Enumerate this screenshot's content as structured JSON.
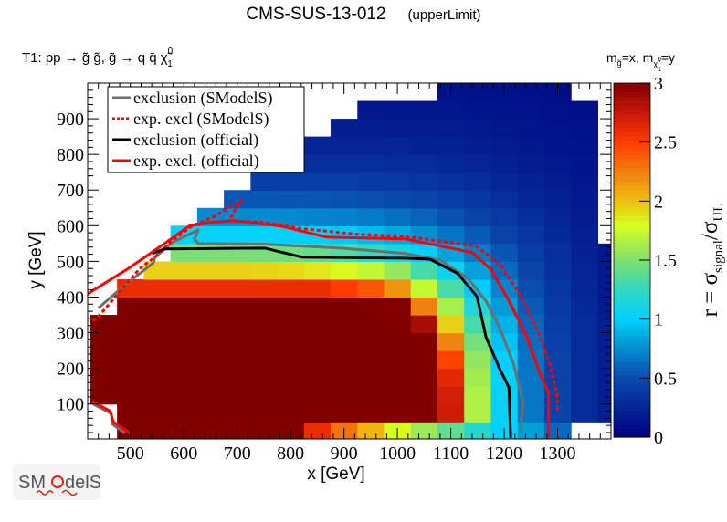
{
  "header": {
    "title": "CMS-SUS-13-012",
    "subtitle": "(upperLimit)",
    "process": "T1: pp → g̃ g̃, g̃  → q q̄  χ̃",
    "process_sup": "0",
    "process_sub": "1",
    "mass_m1": "m",
    "mass_sub1": "g̃",
    "mass_mid": "=x, m",
    "mass_sub2": "χ̃",
    "mass_sub2_sup": "0",
    "mass_sub2_sub": "1",
    "mass_end": "=y"
  },
  "logo": {
    "text": "SModelS"
  },
  "chart_data": {
    "type": "heatmap",
    "title": "CMS-SUS-13-012 (upperLimit)",
    "xlabel": "x [GeV]",
    "ylabel": "y [GeV]",
    "zlabel": {
      "main": "r = σ",
      "sub1": "signal",
      "mid": "/σ",
      "sub2": "UL"
    },
    "xlim": [
      420,
      1400
    ],
    "ylim": [
      2,
      1000
    ],
    "zlim": [
      0,
      3
    ],
    "xticks": [
      "500",
      "600",
      "700",
      "800",
      "900",
      "1000",
      "1100",
      "1200",
      "1300"
    ],
    "yticks": [
      "100",
      "200",
      "300",
      "400",
      "500",
      "600",
      "700",
      "800",
      "900"
    ],
    "zticks": [
      "0",
      "0.5",
      "1",
      "1.5",
      "2",
      "2.5",
      "3"
    ],
    "bin_width": 50,
    "x_centers": [
      450,
      500,
      550,
      600,
      650,
      700,
      750,
      800,
      850,
      900,
      950,
      1000,
      1050,
      1100,
      1150,
      1200,
      1250,
      1300,
      1350,
      1400
    ],
    "y_centers": [
      25,
      75,
      125,
      175,
      225,
      275,
      325,
      375,
      425,
      475,
      525,
      575,
      625,
      675,
      725,
      775,
      825,
      875,
      925,
      975
    ],
    "z": [
      [
        null,
        3,
        3,
        3,
        3,
        3,
        3,
        3,
        2.6,
        2.3,
        2.05,
        1.8,
        1.6,
        1.4,
        1.2,
        1.0,
        0.82,
        0.62,
        null,
        null
      ],
      [
        null,
        3,
        3,
        3,
        3,
        3,
        3,
        3,
        3,
        3,
        3,
        3,
        3,
        2.72,
        1.66,
        1.04,
        0.67,
        0.45,
        0.3,
        0.21
      ],
      [
        3,
        3,
        3,
        3,
        3,
        3,
        3,
        3,
        3,
        3,
        3,
        3,
        3,
        2.71,
        1.65,
        1.04,
        0.67,
        0.45,
        0.3,
        0.21
      ],
      [
        3,
        3,
        3,
        3,
        3,
        3,
        3,
        3,
        3,
        3,
        3,
        3,
        3,
        2.63,
        1.62,
        1.03,
        0.67,
        0.44,
        0.3,
        0.21
      ],
      [
        3,
        3,
        3,
        3,
        3,
        3,
        3,
        3,
        3,
        3,
        3,
        3,
        3,
        2.48,
        1.56,
        1.0,
        0.66,
        0.44,
        0.3,
        0.21
      ],
      [
        3,
        3,
        3,
        3,
        3,
        3,
        3,
        3,
        3,
        3,
        3,
        3,
        3,
        2.24,
        1.46,
        0.95,
        0.63,
        0.43,
        0.29,
        0.2
      ],
      [
        3,
        3,
        3,
        3,
        3,
        3,
        3,
        3,
        3,
        3,
        3,
        3,
        2.86,
        1.95,
        1.32,
        0.89,
        0.6,
        0.41,
        0.29,
        0.2
      ],
      [
        null,
        3,
        3,
        3,
        3,
        3,
        3,
        3,
        3,
        3,
        3,
        2.99,
        2.25,
        1.63,
        1.16,
        0.8,
        0.56,
        0.39,
        0.28,
        0.19
      ],
      [
        null,
        2.6,
        2.6,
        2.6,
        2.6,
        2.6,
        2.6,
        2.6,
        2.6,
        2.5,
        2.4,
        2.17,
        1.74,
        1.33,
        0.99,
        0.72,
        0.51,
        0.37,
        0.26,
        0.18
      ],
      [
        null,
        null,
        1.95,
        1.95,
        1.95,
        1.95,
        1.94,
        1.92,
        1.88,
        1.82,
        1.72,
        1.57,
        1.32,
        1.06,
        0.83,
        0.62,
        0.46,
        0.34,
        0.25,
        0.17
      ],
      [
        null,
        null,
        null,
        1.48,
        1.48,
        1.48,
        1.47,
        1.45,
        1.41,
        1.35,
        1.27,
        1.15,
        1.0,
        0.84,
        0.68,
        0.54,
        0.41,
        0.31,
        0.23,
        0.16
      ],
      [
        null,
        null,
        null,
        1.03,
        1.03,
        1.03,
        1.03,
        1.02,
        1.0,
        0.97,
        0.92,
        0.85,
        0.76,
        0.66,
        0.56,
        0.45,
        0.36,
        0.28,
        0.21,
        null
      ],
      [
        null,
        null,
        null,
        null,
        0.74,
        0.74,
        0.74,
        0.74,
        0.72,
        0.71,
        0.68,
        0.64,
        0.59,
        0.53,
        0.45,
        0.38,
        0.31,
        0.25,
        0.19,
        null
      ],
      [
        null,
        null,
        null,
        null,
        null,
        0.55,
        0.55,
        0.54,
        0.54,
        0.53,
        0.51,
        0.49,
        0.46,
        0.42,
        0.37,
        0.32,
        0.26,
        0.22,
        0.17,
        null
      ],
      [
        null,
        null,
        null,
        null,
        null,
        null,
        0.42,
        0.42,
        0.41,
        0.41,
        0.39,
        0.38,
        0.36,
        0.33,
        0.3,
        0.26,
        0.23,
        0.19,
        0.15,
        null
      ],
      [
        null,
        null,
        null,
        null,
        null,
        null,
        null,
        0.32,
        0.32,
        0.31,
        0.31,
        0.3,
        0.29,
        0.27,
        0.25,
        0.22,
        0.19,
        0.16,
        0.14,
        null
      ],
      [
        null,
        null,
        null,
        null,
        null,
        null,
        null,
        null,
        0.25,
        0.25,
        0.245,
        0.24,
        0.23,
        0.22,
        0.2,
        0.18,
        0.16,
        0.14,
        0.12,
        null
      ],
      [
        null,
        null,
        null,
        null,
        null,
        null,
        null,
        null,
        null,
        0.2,
        0.2,
        0.19,
        0.186,
        0.18,
        0.17,
        0.155,
        0.14,
        0.12,
        0.107,
        null
      ],
      [
        null,
        null,
        null,
        null,
        null,
        null,
        null,
        null,
        null,
        null,
        0.16,
        0.157,
        0.15,
        0.147,
        0.14,
        0.13,
        0.12,
        0.107,
        0.094,
        null
      ],
      [
        null,
        null,
        null,
        null,
        null,
        null,
        null,
        null,
        null,
        null,
        null,
        null,
        null,
        0.12,
        0.117,
        0.11,
        0.1,
        0.093,
        null,
        null
      ]
    ],
    "colormap": [
      [
        0,
        "#00007f"
      ],
      [
        0.5,
        "#0a4aad"
      ],
      [
        0.9,
        "#00b4e6"
      ],
      [
        1.0,
        "#00d0ff"
      ],
      [
        1.25,
        "#30d8c0"
      ],
      [
        1.5,
        "#80e070"
      ],
      [
        1.8,
        "#d8ff20"
      ],
      [
        2.0,
        "#f0c010"
      ],
      [
        2.25,
        "#f08010"
      ],
      [
        2.5,
        "#ff3c00"
      ],
      [
        2.75,
        "#c81808"
      ],
      [
        3,
        "#800000"
      ]
    ],
    "legend_position": "top-left",
    "series": [
      {
        "name": "exclusion (SModelS)",
        "color": "#6e6e6e",
        "style": "solid",
        "segments": [
          [
            [
              440,
              369
            ],
            [
              491,
              435
            ],
            [
              543,
              496
            ],
            [
              546,
              512
            ],
            [
              581,
              555
            ],
            [
              627,
              588
            ],
            [
              620,
              563
            ],
            [
              627,
              550
            ],
            [
              752,
              548
            ],
            [
              895,
              537
            ],
            [
              1015,
              522
            ],
            [
              1079,
              504
            ],
            [
              1132,
              453
            ],
            [
              1166,
              389
            ],
            [
              1192,
              312
            ],
            [
              1218,
              210
            ],
            [
              1235,
              107
            ],
            [
              1231,
              18
            ]
          ],
          [
            [
              430,
              100
            ],
            [
              464,
              74
            ],
            [
              466,
              44
            ],
            [
              490,
              18
            ]
          ]
        ]
      },
      {
        "name": "exp. excl (SModelS)",
        "color": "#ff0000",
        "style": "dotted",
        "segments": [
          [
            [
              430,
              333
            ],
            [
              443,
              350
            ],
            [
              517,
              479
            ],
            [
              546,
              512
            ],
            [
              576,
              555
            ],
            [
              615,
              599
            ],
            [
              655,
              624
            ],
            [
              701,
              665
            ],
            [
              708,
              672
            ],
            [
              684,
              614
            ],
            [
              752,
              609
            ],
            [
              809,
              594
            ],
            [
              924,
              576
            ],
            [
              1015,
              570
            ],
            [
              1147,
              543
            ],
            [
              1192,
              491
            ],
            [
              1226,
              415
            ],
            [
              1261,
              312
            ],
            [
              1286,
              210
            ],
            [
              1298,
              133
            ],
            [
              1300,
              82
            ]
          ]
        ]
      },
      {
        "name": "exclusion (official)",
        "color": "#000000",
        "style": "solid",
        "segments": [
          [
            [
              541,
              522
            ],
            [
              564,
              535
            ],
            [
              752,
              537
            ],
            [
              821,
              512
            ],
            [
              1015,
              509
            ],
            [
              1061,
              506
            ],
            [
              1113,
              466
            ],
            [
              1149,
              402
            ],
            [
              1166,
              287
            ],
            [
              1192,
              197
            ],
            [
              1209,
              146
            ],
            [
              1212,
              5
            ]
          ]
        ]
      },
      {
        "name": "exp. excl. (official)",
        "color": "#ff0000",
        "style": "solid",
        "segments": [
          [
            [
              418,
              407
            ],
            [
              495,
              479
            ],
            [
              564,
              550
            ],
            [
              610,
              599
            ],
            [
              649,
              609
            ],
            [
              696,
              614
            ],
            [
              782,
              599
            ],
            [
              867,
              568
            ],
            [
              1015,
              563
            ],
            [
              1140,
              525
            ],
            [
              1175,
              478
            ],
            [
              1209,
              389
            ],
            [
              1243,
              287
            ],
            [
              1267,
              184
            ],
            [
              1283,
              133
            ],
            [
              1283,
              5
            ]
          ],
          [
            [
              428,
              108
            ],
            [
              462,
              80
            ],
            [
              468,
              50
            ],
            [
              500,
              18
            ]
          ]
        ]
      }
    ]
  }
}
